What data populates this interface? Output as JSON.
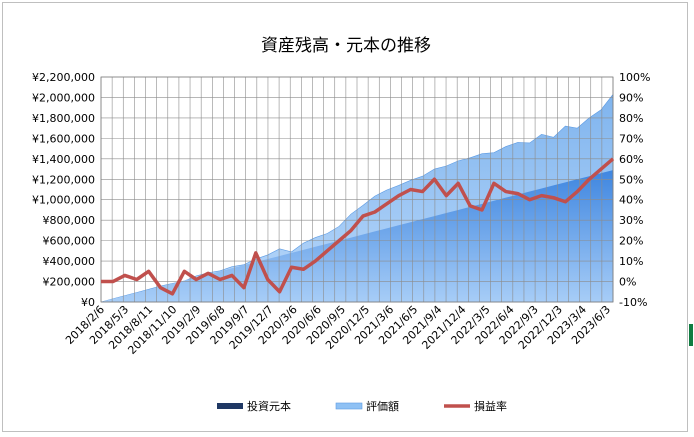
{
  "chart_data": {
    "type": "area",
    "title": "資産残高・元本の推移",
    "x_tick_labels": [
      "2018/2/6",
      "2018/5/3",
      "2018/8/11",
      "2018/11/10",
      "2019/2/9",
      "2019/6/8",
      "2019/9/7",
      "2019/12/7",
      "2020/3/6",
      "2020/6/6",
      "2020/9/5",
      "2020/12/5",
      "2021/3/6",
      "2021/6/5",
      "2021/9/4",
      "2021/12/4",
      "2022/3/5",
      "2022/6/4",
      "2022/9/3",
      "2022/12/3",
      "2023/3/4",
      "2023/6/3"
    ],
    "y_left": {
      "min": 0,
      "max": 2200000,
      "step": 200000,
      "tick_labels": [
        "¥0",
        "¥200,000",
        "¥400,000",
        "¥600,000",
        "¥800,000",
        "¥1,000,000",
        "¥1,200,000",
        "¥1,400,000",
        "¥1,600,000",
        "¥1,800,000",
        "¥2,000,000",
        "¥2,200,000"
      ]
    },
    "y_right": {
      "min": -10,
      "max": 100,
      "step": 10,
      "tick_labels": [
        "-10%",
        "0%",
        "10%",
        "20%",
        "30%",
        "40%",
        "50%",
        "60%",
        "70%",
        "80%",
        "90%",
        "100%"
      ]
    },
    "grid": true,
    "legend_position": "bottom",
    "series": [
      {
        "name": "投資元本",
        "type": "area",
        "axis": "left",
        "color": "#1f3864",
        "values": [
          0,
          30000,
          60000,
          90000,
          120000,
          150000,
          180000,
          210000,
          240000,
          270000,
          300000,
          330000,
          360000,
          390000,
          420000,
          450000,
          480000,
          510000,
          540000,
          570000,
          600000,
          630000,
          660000,
          690000,
          720000,
          750000,
          780000,
          810000,
          840000,
          870000,
          900000,
          930000,
          960000,
          990000,
          1020000,
          1050000,
          1080000,
          1110000,
          1140000,
          1170000,
          1200000,
          1230000,
          1260000,
          1290000
        ]
      },
      {
        "name": "評価額",
        "type": "area",
        "axis": "left",
        "color": "#8fc1f4",
        "values": [
          0,
          31000,
          62000,
          92000,
          124000,
          156000,
          182000,
          205000,
          255000,
          285000,
          305000,
          345000,
          365000,
          420000,
          460000,
          520000,
          490000,
          575000,
          630000,
          670000,
          740000,
          860000,
          945000,
          1035000,
          1095000,
          1140000,
          1190000,
          1230000,
          1300000,
          1330000,
          1380000,
          1410000,
          1450000,
          1460000,
          1520000,
          1560000,
          1555000,
          1640000,
          1610000,
          1720000,
          1700000,
          1800000,
          1880000,
          2030000
        ]
      },
      {
        "name": "損益率",
        "type": "line",
        "axis": "right",
        "color": "#c0504d",
        "values": [
          0,
          0,
          3,
          1,
          5,
          -3,
          -6,
          5,
          1,
          4,
          1,
          3,
          -3,
          14,
          1,
          -5,
          7,
          6,
          10,
          15,
          20,
          25,
          32,
          34,
          38,
          42,
          45,
          44,
          50,
          42,
          48,
          37,
          35,
          48,
          44,
          43,
          40,
          42,
          41,
          39,
          44,
          50,
          55,
          60
        ]
      }
    ]
  }
}
